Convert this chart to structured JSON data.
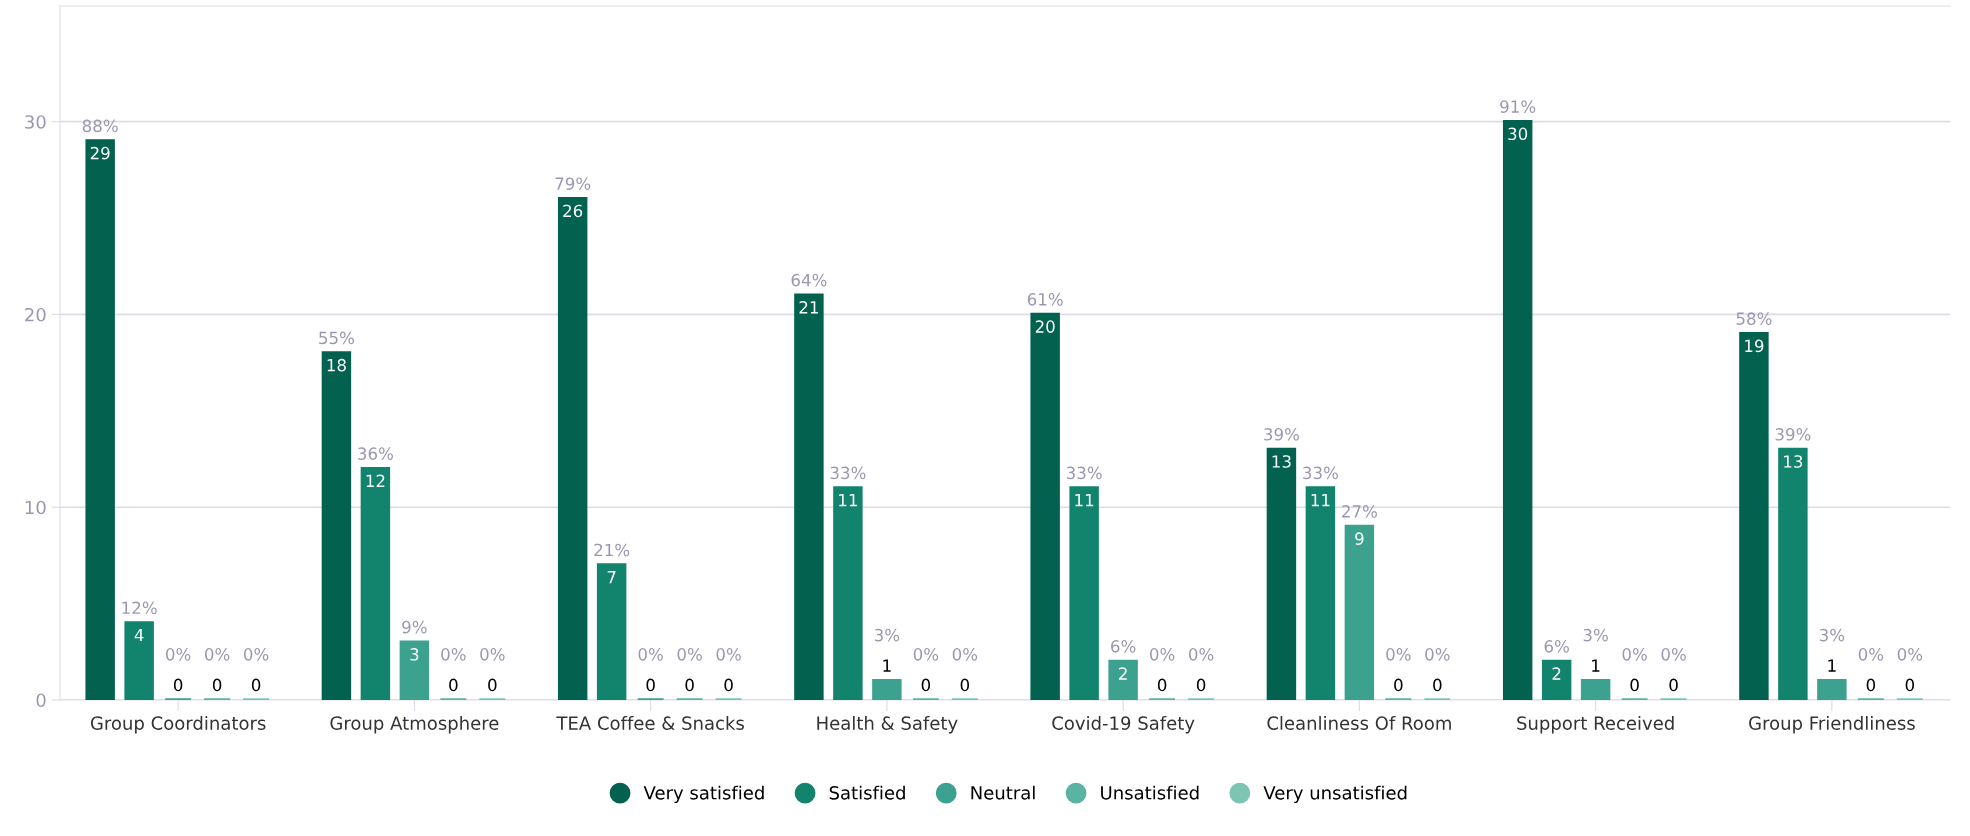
{
  "chart_data": {
    "type": "bar",
    "categories": [
      "Group Coordinators",
      "Group Atmosphere",
      "TEA Coffee & Snacks",
      "Health & Safety",
      "Covid-19 Safety",
      "Cleanliness Of Room",
      "Support Received",
      "Group Friendliness"
    ],
    "series": [
      {
        "name": "Very satisfied",
        "color": "#03624f",
        "values": [
          29,
          18,
          26,
          21,
          20,
          13,
          30,
          19
        ]
      },
      {
        "name": "Satisfied",
        "color": "#12846e",
        "values": [
          4,
          12,
          7,
          11,
          11,
          11,
          2,
          13
        ]
      },
      {
        "name": "Neutral",
        "color": "#3ca28f",
        "values": [
          0,
          3,
          0,
          1,
          2,
          9,
          1,
          1
        ]
      },
      {
        "name": "Unsatisfied",
        "color": "#5bb3a2",
        "values": [
          0,
          0,
          0,
          0,
          0,
          0,
          0,
          0
        ]
      },
      {
        "name": "Very unsatisfied",
        "color": "#7cc4b5",
        "values": [
          0,
          0,
          0,
          0,
          0,
          0,
          0,
          0
        ]
      }
    ],
    "annotations": [
      "88%",
      "12%",
      "0%",
      "0%",
      "0%",
      "55%",
      "36%",
      "9%",
      "0%",
      "0%",
      "79%",
      "21%",
      "0%",
      "0%",
      "0%",
      "64%",
      "33%",
      "3%",
      "0%",
      "0%",
      "61%",
      "33%",
      "6%",
      "0%",
      "0%",
      "39%",
      "33%",
      "27%",
      "0%",
      "0%",
      "91%",
      "6%",
      "3%",
      "0%",
      "0%",
      "58%",
      "39%",
      "3%",
      "0%",
      "0%"
    ],
    "ylim": [
      0,
      36
    ],
    "yticks": [
      0,
      10,
      20,
      30
    ],
    "grid": "y",
    "legend": "bottom",
    "data_labels": true
  }
}
